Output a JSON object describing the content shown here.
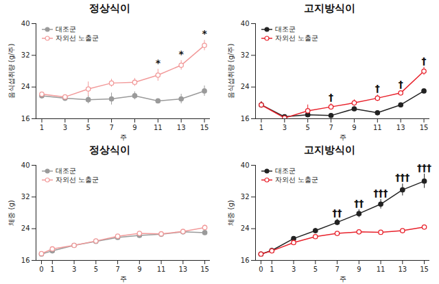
{
  "chart_data": [
    {
      "type": "line",
      "title": "정상식이",
      "x_label": "주",
      "y_label": "음식섭취량 (g/주)",
      "x": [
        1,
        3,
        5,
        7,
        9,
        11,
        13,
        15
      ],
      "xlim": [
        0.5,
        15.5
      ],
      "xticks": [
        1,
        3,
        5,
        7,
        9,
        11,
        13,
        15
      ],
      "ylim": [
        16,
        40
      ],
      "yticks": [
        16,
        24,
        32,
        40
      ],
      "legend": "top-left",
      "series": [
        {
          "name": "대조군",
          "color": "#9a9a9a",
          "marker": "circle",
          "values": [
            21.8,
            21.2,
            20.8,
            21.0,
            21.8,
            20.5,
            21.0,
            23.0
          ],
          "errors": [
            0.8,
            0.8,
            1.0,
            1.5,
            1.0,
            0.5,
            1.2,
            1.3
          ]
        },
        {
          "name": "자외선 노출군",
          "color": "#f29a9a",
          "marker": "circle-open",
          "values": [
            22.2,
            21.5,
            23.5,
            25.0,
            25.2,
            27.0,
            29.5,
            34.5
          ],
          "errors": [
            0.5,
            0.5,
            1.8,
            1.0,
            1.0,
            1.5,
            1.2,
            1.3
          ]
        }
      ],
      "annotations": [
        {
          "x": 11,
          "text": "*"
        },
        {
          "x": 13,
          "text": "*"
        },
        {
          "x": 15,
          "text": "*"
        }
      ]
    },
    {
      "type": "line",
      "title": "고지방식이",
      "x_label": "주",
      "y_label": "음식섭취량 (g/주)",
      "x": [
        1,
        3,
        5,
        7,
        9,
        11,
        13,
        15
      ],
      "xlim": [
        0.5,
        15.5
      ],
      "xticks": [
        1,
        3,
        5,
        7,
        9,
        11,
        13,
        15
      ],
      "ylim": [
        16,
        40
      ],
      "yticks": [
        16,
        24,
        32,
        40
      ],
      "legend": "top-left",
      "series": [
        {
          "name": "대조군",
          "color": "#222222",
          "marker": "circle",
          "values": [
            19.5,
            16.5,
            17.0,
            16.8,
            18.5,
            17.5,
            19.5,
            23.0
          ],
          "errors": [
            0.8,
            0.5,
            0.5,
            0.3,
            0.3,
            0.3,
            0.5,
            0.3
          ]
        },
        {
          "name": "자외선 노출군",
          "color": "#e8202a",
          "marker": "circle-open",
          "values": [
            19.5,
            16.2,
            18.0,
            19.0,
            20.0,
            21.2,
            22.5,
            28.0
          ],
          "errors": [
            0.8,
            0.6,
            1.5,
            0.8,
            0.8,
            0.8,
            0.6,
            1.0
          ]
        }
      ],
      "annotations": [
        {
          "x": 7,
          "text": "†"
        },
        {
          "x": 11,
          "text": "†"
        },
        {
          "x": 13,
          "text": "†"
        },
        {
          "x": 15,
          "text": "†"
        }
      ]
    },
    {
      "type": "line",
      "title": "정상식이",
      "x_label": "주",
      "y_label": "체중 (g)",
      "x": [
        0,
        1,
        3,
        5,
        7,
        9,
        11,
        13,
        15
      ],
      "xlim": [
        -0.5,
        15.5
      ],
      "xticks": [
        0,
        1,
        3,
        5,
        7,
        9,
        11,
        13,
        15
      ],
      "ylim": [
        16,
        40
      ],
      "yticks": [
        16,
        24,
        32,
        40
      ],
      "legend": "top-left",
      "series": [
        {
          "name": "대조군",
          "color": "#9a9a9a",
          "marker": "circle",
          "values": [
            17.6,
            18.4,
            19.8,
            20.8,
            21.8,
            22.3,
            22.6,
            23.2,
            23.0
          ],
          "errors": [
            0.2,
            0.3,
            0.2,
            0.2,
            0.3,
            0.3,
            0.4,
            0.4,
            0.4
          ]
        },
        {
          "name": "자외선 노출군",
          "color": "#f29a9a",
          "marker": "circle-open",
          "values": [
            17.7,
            18.9,
            19.8,
            20.9,
            22.1,
            22.8,
            22.7,
            23.3,
            24.3
          ],
          "errors": [
            0.2,
            0.3,
            0.2,
            0.2,
            0.4,
            0.5,
            0.4,
            0.5,
            0.6
          ]
        }
      ],
      "annotations": []
    },
    {
      "type": "line",
      "title": "고지방식이",
      "x_label": "주",
      "y_label": "체중 (g)",
      "x": [
        0,
        1,
        3,
        5,
        7,
        9,
        11,
        13,
        15
      ],
      "xlim": [
        -0.5,
        15.5
      ],
      "xticks": [
        0,
        1,
        3,
        5,
        7,
        9,
        11,
        13,
        15
      ],
      "ylim": [
        16,
        40
      ],
      "yticks": [
        16,
        24,
        32,
        40
      ],
      "legend": "top-left",
      "series": [
        {
          "name": "대조군",
          "color": "#222222",
          "marker": "circle",
          "values": [
            17.6,
            18.5,
            21.5,
            23.5,
            25.6,
            27.8,
            30.2,
            33.8,
            36.0
          ],
          "errors": [
            0.2,
            0.3,
            0.4,
            0.6,
            0.8,
            1.0,
            1.2,
            1.5,
            1.8
          ]
        },
        {
          "name": "자외선 노출군",
          "color": "#e8202a",
          "marker": "circle-open",
          "values": [
            17.6,
            18.4,
            20.5,
            22.0,
            22.8,
            23.2,
            23.1,
            23.5,
            24.4
          ],
          "errors": [
            0.2,
            0.3,
            0.3,
            0.4,
            0.3,
            0.3,
            0.3,
            0.4,
            0.3
          ]
        }
      ],
      "annotations": [
        {
          "x": 7,
          "text": "††"
        },
        {
          "x": 9,
          "text": "††"
        },
        {
          "x": 11,
          "text": "†††"
        },
        {
          "x": 13,
          "text": "†††"
        },
        {
          "x": 15,
          "text": "†††"
        }
      ]
    }
  ]
}
